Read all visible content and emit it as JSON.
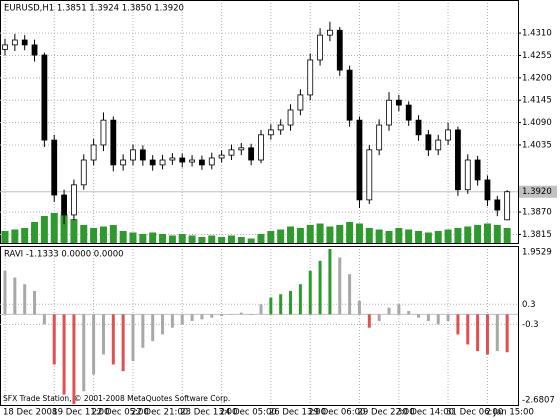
{
  "chart_data": {
    "type": "candlestick",
    "title": "EURUSD,H1  1.3851 1.3924 1.3850 1.3920",
    "x": [
      "18 Dec 2008",
      null,
      null,
      null,
      null,
      "19 Dec 11:00",
      null,
      null,
      null,
      "22 Dec 05:00",
      null,
      null,
      null,
      "22 Dec 21:00",
      null,
      null,
      null,
      null,
      "23 Dec 13:00",
      null,
      null,
      null,
      "24 Dec 05:00",
      null,
      null,
      null,
      null,
      "26 Dec 13:00",
      null,
      null,
      null,
      "29 Dec 06:00",
      null,
      null,
      null,
      null,
      "29 Dec 22:00",
      null,
      null,
      null,
      "30 Dec 14:00",
      null,
      null,
      null,
      null,
      "31 Dec 06:00",
      null,
      null,
      null,
      "2 Jan 15:00",
      null,
      null
    ],
    "open": [
      1.427,
      1.4281,
      1.4293,
      1.4281,
      1.4256,
      1.4047,
      1.3912,
      1.3863,
      1.3937,
      1.3998,
      1.4035,
      1.4096,
      1.3986,
      1.3998,
      1.4023,
      1.3998,
      1.3986,
      1.3998,
      1.4003,
      1.3993,
      1.3998,
      1.3986,
      1.4003,
      1.401,
      1.4023,
      1.4028,
      1.3998,
      1.406,
      1.4072,
      1.4084,
      1.4121,
      1.4158,
      1.4244,
      1.4305,
      1.4317,
      1.4219,
      1.4096,
      1.39,
      1.4023,
      1.4084,
      1.4145,
      1.4133,
      1.4096,
      1.406,
      1.4023,
      1.4047,
      1.4072,
      1.3925,
      1.3998,
      1.3949,
      1.39,
      1.3851
    ],
    "high": [
      1.4296,
      1.4308,
      1.4305,
      1.4294,
      1.4262,
      1.406,
      1.3925,
      1.395,
      1.4012,
      1.405,
      1.4115,
      1.4105,
      1.4012,
      1.4036,
      1.4034,
      1.401,
      1.4011,
      1.4015,
      1.4014,
      1.401,
      1.4009,
      1.4016,
      1.4022,
      1.4036,
      1.404,
      1.4038,
      1.4072,
      1.4086,
      1.4098,
      1.4135,
      1.4172,
      1.426,
      1.4322,
      1.4338,
      1.4325,
      1.423,
      1.4105,
      1.4035,
      1.4098,
      1.4165,
      1.4158,
      1.4142,
      1.4108,
      1.4072,
      1.406,
      1.409,
      1.408,
      1.4012,
      1.4008,
      1.396,
      1.391,
      1.3924
    ],
    "low": [
      1.4255,
      1.4266,
      1.4268,
      1.424,
      1.403,
      1.3895,
      1.384,
      1.385,
      1.3925,
      1.3985,
      1.402,
      1.397,
      1.3972,
      1.3985,
      1.3984,
      1.3972,
      1.3975,
      1.3986,
      1.398,
      1.3982,
      1.3974,
      1.3975,
      1.3992,
      1.3998,
      1.401,
      1.3985,
      1.399,
      1.4048,
      1.406,
      1.407,
      1.4108,
      1.4145,
      1.423,
      1.429,
      1.4205,
      1.408,
      1.388,
      1.389,
      1.401,
      1.407,
      1.4118,
      1.4082,
      1.4045,
      1.4008,
      1.401,
      1.4035,
      1.391,
      1.3915,
      1.3935,
      1.3885,
      1.386,
      1.385
    ],
    "close": [
      1.4281,
      1.4293,
      1.4281,
      1.4256,
      1.4047,
      1.3912,
      1.3863,
      1.3937,
      1.3998,
      1.4035,
      1.4096,
      1.3986,
      1.3998,
      1.4023,
      1.3998,
      1.3986,
      1.3998,
      1.4003,
      1.3993,
      1.3998,
      1.3986,
      1.4003,
      1.401,
      1.4023,
      1.4028,
      1.3998,
      1.406,
      1.4072,
      1.4084,
      1.4121,
      1.4158,
      1.4244,
      1.4305,
      1.4317,
      1.4219,
      1.4096,
      1.39,
      1.4023,
      1.4084,
      1.4145,
      1.4133,
      1.4096,
      1.406,
      1.4023,
      1.4047,
      1.4072,
      1.3925,
      1.3998,
      1.3949,
      1.39,
      1.3875,
      1.392
    ],
    "volume": [
      400,
      450,
      500,
      700,
      900,
      1000,
      950,
      800,
      600,
      500,
      550,
      600,
      400,
      350,
      300,
      350,
      300,
      250,
      300,
      250,
      200,
      250,
      200,
      250,
      200,
      150,
      300,
      400,
      450,
      550,
      500,
      600,
      650,
      550,
      600,
      700,
      650,
      500,
      450,
      400,
      500,
      450,
      400,
      350,
      400,
      450,
      500,
      550,
      600,
      650,
      600,
      500
    ],
    "volume_color": "#2e9a2e",
    "ylim": [
      1.3794,
      1.4384
    ],
    "yticks": [
      {
        "value": 1.431,
        "label": "1.4310"
      },
      {
        "value": 1.4255,
        "label": "1.4255"
      },
      {
        "value": 1.42,
        "label": "1.4200"
      },
      {
        "value": 1.4145,
        "label": "1.4145"
      },
      {
        "value": 1.409,
        "label": "1.4090"
      },
      {
        "value": 1.4035,
        "label": "1.4035"
      },
      {
        "value": 1.387,
        "label": "1.3870"
      },
      {
        "value": 1.3815,
        "label": "1.3815"
      }
    ],
    "last_price": {
      "value": 1.392,
      "label": "1.3920"
    },
    "grid": true,
    "indicator": {
      "title": "RAVI -1.1333 0.0000 0.0000",
      "values": [
        1.3,
        1.1,
        0.9,
        0.7,
        -0.3,
        -1.5,
        -2.4,
        -2.6807,
        -2.3,
        -1.8,
        -1.2,
        -1.5,
        -1.7,
        -1.4,
        -1.0,
        -0.8,
        -0.6,
        -0.4,
        -0.3,
        -0.2,
        -0.15,
        -0.1,
        -0.05,
        0.0,
        0.05,
        -0.02,
        0.3,
        0.5,
        0.6,
        0.7,
        0.9,
        1.3,
        1.6,
        1.9529,
        1.7,
        1.2,
        0.4,
        -0.4,
        -0.2,
        0.2,
        0.3,
        0.1,
        -0.1,
        -0.2,
        -0.3,
        -0.2,
        -0.6,
        -0.9,
        -1.1,
        -1.2,
        -1.1,
        -1.1333
      ],
      "ylim": [
        -2.6807,
        1.9529
      ],
      "yticks": [
        0.3,
        -0.3
      ],
      "up_color": "#2e9a2e",
      "down_color": "#e05050",
      "neutral_color": "#a8a8a8"
    },
    "copyright": "SFX Trade Station, © 2001-2008 MetaQuotes Software Corp."
  }
}
